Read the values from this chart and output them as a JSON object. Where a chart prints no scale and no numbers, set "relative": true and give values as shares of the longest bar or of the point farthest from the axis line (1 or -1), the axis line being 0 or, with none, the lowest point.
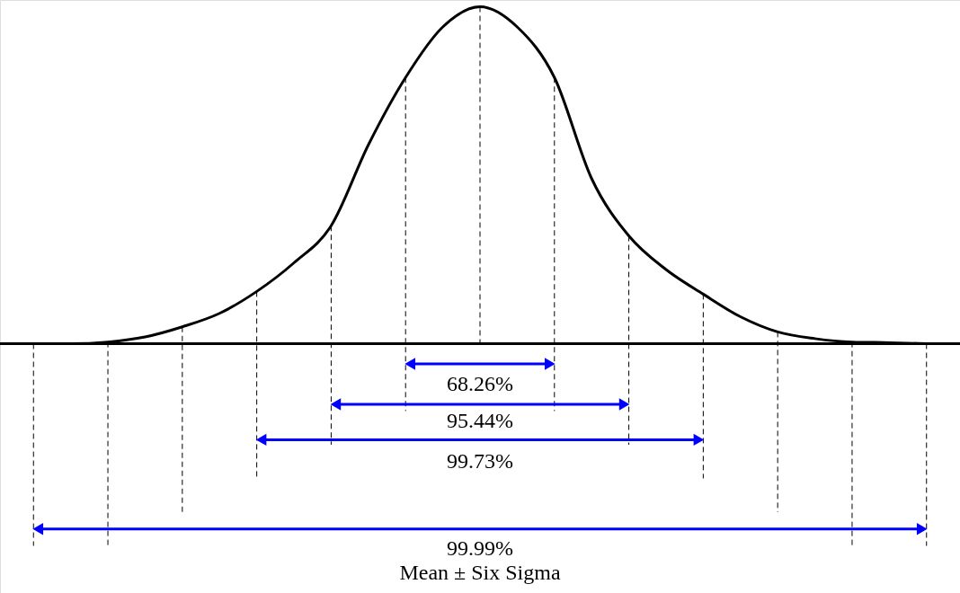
{
  "chart_data": {
    "type": "line",
    "relative": true,
    "categories": [
      null,
      null,
      null,
      null,
      null,
      null,
      null,
      null,
      null,
      null,
      null,
      null,
      null,
      null,
      null,
      null,
      null,
      null,
      null,
      null,
      null,
      null,
      null,
      null,
      null
    ],
    "series": [
      {
        "color": "#000000",
        "values": [
          0,
          0,
          0.005,
          0.02,
          0.05,
          0.09,
          0.155,
          0.24,
          0.35,
          0.59,
          0.79,
          0.94,
          1,
          0.94,
          0.79,
          0.49,
          0.32,
          0.22,
          0.147,
          0.08,
          0.035,
          0.015,
          0.005,
          0.003,
          0
        ]
      }
    ],
    "annotations": [
      "68.26%",
      "95.44%",
      "99.73%",
      "99.99%",
      "Mean ± Six Sigma"
    ],
    "marker": "none",
    "line_style": "solid",
    "grid": "x"
  }
}
